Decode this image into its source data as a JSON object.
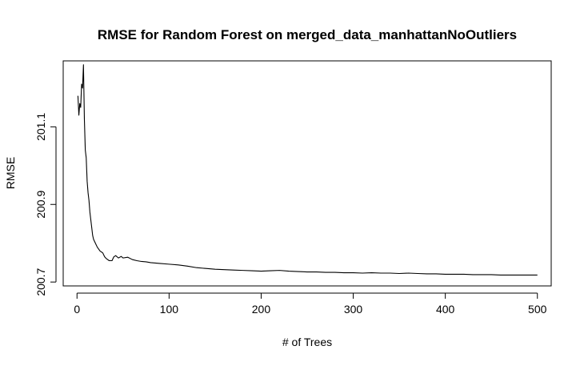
{
  "chart_data": {
    "type": "line",
    "title": "RMSE for Random Forest on merged_data_manhattanNoOutliers",
    "xlabel": "# of Trees",
    "ylabel": "RMSE",
    "xlim": [
      -15,
      515
    ],
    "ylim": [
      200.69,
      201.27
    ],
    "xticks": [
      0,
      100,
      200,
      300,
      400,
      500
    ],
    "xtick_labels": [
      "0",
      "100",
      "200",
      "300",
      "400",
      "500"
    ],
    "yticks": [
      200.7,
      200.9,
      201.1
    ],
    "ytick_labels": [
      "200.7",
      "200.9",
      "201.1"
    ],
    "grid": false,
    "series": [
      {
        "x": [
          1,
          2,
          3,
          4,
          5,
          6,
          7,
          8,
          9,
          10,
          11,
          12,
          13,
          14,
          15,
          16,
          17,
          18,
          20,
          22,
          25,
          28,
          30,
          32,
          35,
          38,
          40,
          42,
          45,
          48,
          50,
          55,
          60,
          65,
          70,
          75,
          80,
          90,
          100,
          110,
          120,
          130,
          140,
          150,
          160,
          170,
          180,
          190,
          200,
          210,
          220,
          230,
          240,
          250,
          260,
          270,
          280,
          290,
          300,
          310,
          320,
          330,
          340,
          350,
          360,
          370,
          380,
          390,
          400,
          410,
          420,
          430,
          440,
          450,
          460,
          470,
          480,
          490,
          500
        ],
        "y": [
          201.18,
          201.13,
          201.16,
          201.15,
          201.21,
          201.2,
          201.26,
          201.12,
          201.04,
          201.02,
          200.96,
          200.93,
          200.91,
          200.88,
          200.86,
          200.84,
          200.82,
          200.81,
          200.8,
          200.79,
          200.78,
          200.775,
          200.765,
          200.76,
          200.755,
          200.755,
          200.765,
          200.768,
          200.762,
          200.766,
          200.762,
          200.764,
          200.758,
          200.755,
          200.753,
          200.752,
          200.75,
          200.748,
          200.746,
          200.744,
          200.741,
          200.737,
          200.735,
          200.733,
          200.732,
          200.731,
          200.73,
          200.729,
          200.728,
          200.729,
          200.73,
          200.728,
          200.727,
          200.726,
          200.726,
          200.725,
          200.725,
          200.724,
          200.724,
          200.723,
          200.724,
          200.723,
          200.723,
          200.722,
          200.723,
          200.722,
          200.721,
          200.721,
          200.72,
          200.72,
          200.72,
          200.719,
          200.719,
          200.719,
          200.718,
          200.718,
          200.718,
          200.718,
          200.718
        ]
      }
    ]
  }
}
